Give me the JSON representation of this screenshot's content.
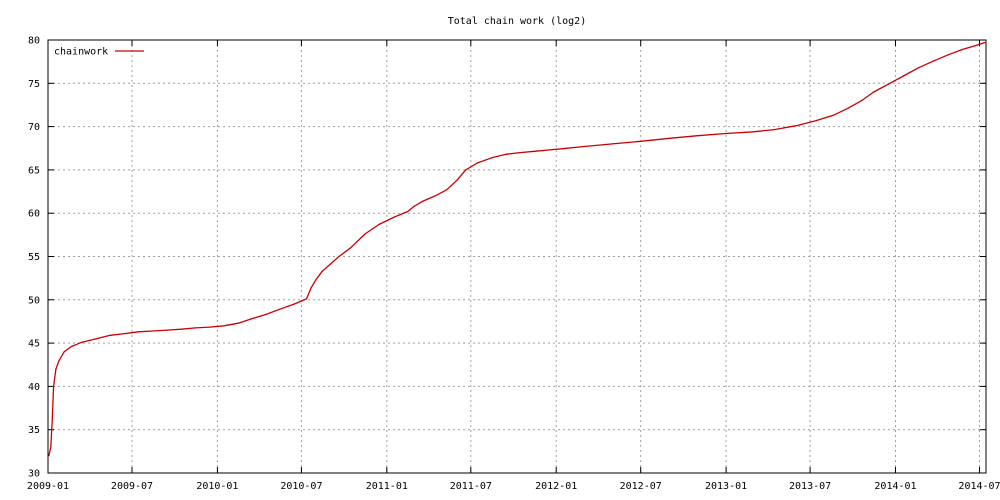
{
  "chart_data": {
    "type": "line",
    "title": "Total chain work (log2)",
    "xlabel": "",
    "ylabel": "",
    "x_ticks": [
      "2009-01",
      "2009-07",
      "2010-01",
      "2010-07",
      "2011-01",
      "2011-07",
      "2012-01",
      "2012-07",
      "2013-01",
      "2013-07",
      "2014-01",
      "2014-07"
    ],
    "y_ticks": [
      30,
      35,
      40,
      45,
      50,
      55,
      60,
      65,
      70,
      75,
      80
    ],
    "ylim": [
      30,
      80
    ],
    "xlim": [
      "2009-01-01",
      "2014-07-15"
    ],
    "grid": true,
    "legend_position": "top-left",
    "series": [
      {
        "name": "chainwork",
        "color": "#cc0000",
        "points": [
          [
            "2009-01-03",
            32.0
          ],
          [
            "2009-01-07",
            33.0
          ],
          [
            "2009-01-10",
            36.0
          ],
          [
            "2009-01-13",
            40.0
          ],
          [
            "2009-01-18",
            42.0
          ],
          [
            "2009-01-25",
            43.0
          ],
          [
            "2009-02-05",
            44.0
          ],
          [
            "2009-02-20",
            44.6
          ],
          [
            "2009-03-15",
            45.1
          ],
          [
            "2009-04-15",
            45.5
          ],
          [
            "2009-05-15",
            45.9
          ],
          [
            "2009-06-15",
            46.1
          ],
          [
            "2009-07-15",
            46.3
          ],
          [
            "2009-08-15",
            46.4
          ],
          [
            "2009-09-15",
            46.5
          ],
          [
            "2009-10-15",
            46.6
          ],
          [
            "2009-11-15",
            46.75
          ],
          [
            "2009-12-15",
            46.85
          ],
          [
            "2010-01-15",
            47.0
          ],
          [
            "2010-02-15",
            47.3
          ],
          [
            "2010-03-15",
            47.8
          ],
          [
            "2010-04-15",
            48.3
          ],
          [
            "2010-05-15",
            48.9
          ],
          [
            "2010-06-15",
            49.5
          ],
          [
            "2010-07-12",
            50.1
          ],
          [
            "2010-07-22",
            51.4
          ],
          [
            "2010-08-01",
            52.3
          ],
          [
            "2010-08-15",
            53.3
          ],
          [
            "2010-09-01",
            54.1
          ],
          [
            "2010-09-20",
            55.0
          ],
          [
            "2010-10-15",
            56.0
          ],
          [
            "2010-11-15",
            57.6
          ],
          [
            "2010-12-15",
            58.7
          ],
          [
            "2011-01-15",
            59.5
          ],
          [
            "2011-02-15",
            60.2
          ],
          [
            "2011-03-01",
            60.8
          ],
          [
            "2011-03-20",
            61.4
          ],
          [
            "2011-04-15",
            62.0
          ],
          [
            "2011-05-10",
            62.7
          ],
          [
            "2011-06-01",
            63.8
          ],
          [
            "2011-06-20",
            65.0
          ],
          [
            "2011-07-15",
            65.8
          ],
          [
            "2011-08-15",
            66.4
          ],
          [
            "2011-09-15",
            66.8
          ],
          [
            "2011-10-15",
            67.0
          ],
          [
            "2011-11-15",
            67.15
          ],
          [
            "2011-12-15",
            67.3
          ],
          [
            "2012-01-15",
            67.45
          ],
          [
            "2012-03-01",
            67.7
          ],
          [
            "2012-05-01",
            68.0
          ],
          [
            "2012-07-01",
            68.3
          ],
          [
            "2012-09-01",
            68.65
          ],
          [
            "2012-11-01",
            68.95
          ],
          [
            "2013-01-01",
            69.2
          ],
          [
            "2013-03-01",
            69.4
          ],
          [
            "2013-04-15",
            69.65
          ],
          [
            "2013-06-01",
            70.1
          ],
          [
            "2013-07-15",
            70.7
          ],
          [
            "2013-08-20",
            71.3
          ],
          [
            "2013-09-20",
            72.1
          ],
          [
            "2013-10-20",
            73.0
          ],
          [
            "2013-11-15",
            74.0
          ],
          [
            "2013-12-20",
            75.0
          ],
          [
            "2014-01-20",
            75.9
          ],
          [
            "2014-02-20",
            76.8
          ],
          [
            "2014-03-25",
            77.6
          ],
          [
            "2014-04-25",
            78.3
          ],
          [
            "2014-05-25",
            78.9
          ],
          [
            "2014-06-25",
            79.4
          ],
          [
            "2014-07-12",
            79.7
          ]
        ]
      }
    ]
  }
}
